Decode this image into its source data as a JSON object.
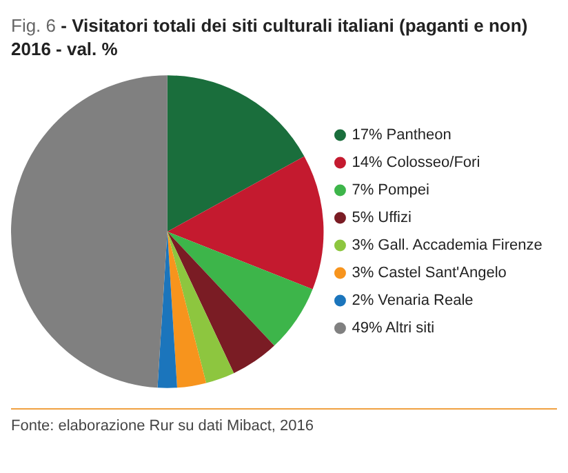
{
  "chart_data": {
    "type": "pie",
    "title": "Fig. 6 - Visitatori totali dei siti culturali italiani (paganti e non) 2016 - val. %",
    "categories": [
      "17% Pantheon",
      "14% Colosseo/Fori",
      "7% Pompei",
      "5% Uffizi",
      "3% Gall. Accademia Firenze",
      "3% Castel Sant'Angelo",
      "2% Venaria Reale",
      "49% Altri siti"
    ],
    "values": [
      17,
      14,
      7,
      5,
      3,
      3,
      2,
      49
    ],
    "colors": [
      "#1a6e3c",
      "#c41a2f",
      "#3db54a",
      "#7a1c24",
      "#8dc63f",
      "#f7941d",
      "#1b75bc",
      "#808080"
    ],
    "legend": "right",
    "annotations": [
      "Fonte: elaborazione Rur su dati Mibact, 2016"
    ]
  }
}
